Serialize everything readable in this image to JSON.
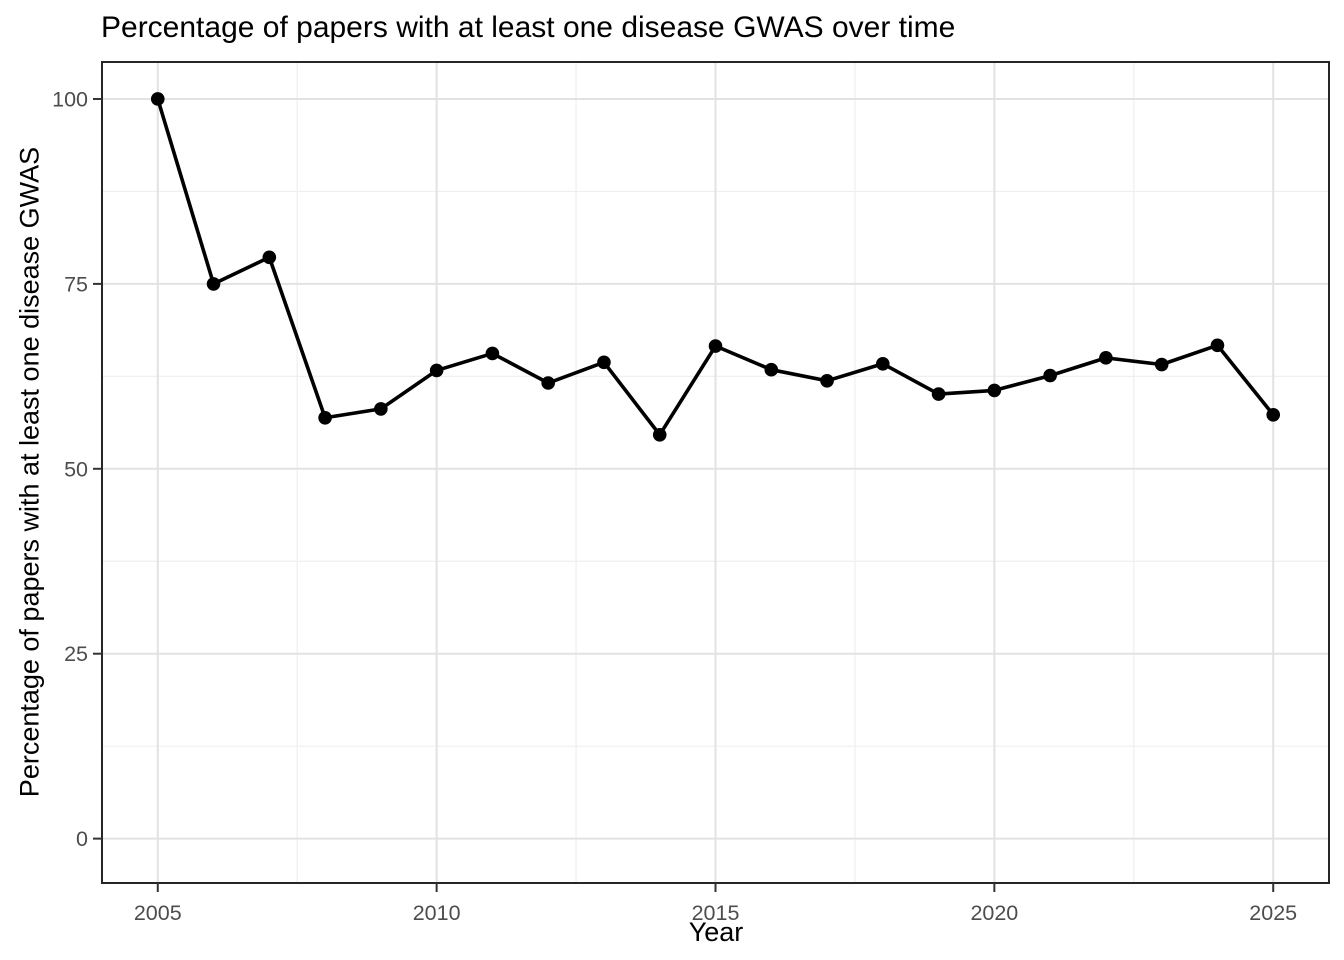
{
  "chart_data": {
    "type": "line",
    "title": "Percentage of papers with at least one disease GWAS over time",
    "xlabel": "Year",
    "ylabel": "Percentage of papers with at least one disease GWAS",
    "x": [
      2005,
      2006,
      2007,
      2008,
      2009,
      2010,
      2011,
      2012,
      2013,
      2014,
      2015,
      2016,
      2017,
      2018,
      2019,
      2020,
      2021,
      2022,
      2023,
      2024,
      2025
    ],
    "values": [
      100,
      75,
      78.6,
      56.9,
      58.1,
      63.3,
      65.6,
      61.6,
      64.4,
      54.6,
      66.6,
      63.4,
      61.9,
      64.2,
      60.1,
      60.6,
      62.6,
      65.0,
      64.1,
      66.7,
      57.3
    ],
    "series_name": "Percentage of papers with at least one disease GWAS",
    "xlim": [
      2004,
      2026
    ],
    "ylim": [
      -6,
      105
    ],
    "x_ticks": [
      2005,
      2010,
      2015,
      2020,
      2025
    ],
    "y_ticks": [
      0,
      25,
      50,
      75,
      100
    ],
    "x_minor_breaks": [
      2007.5,
      2012.5,
      2017.5,
      2022.5
    ],
    "y_minor_breaks": [
      12.5,
      37.5,
      62.5,
      87.5
    ],
    "grid": "major+minor",
    "legend_position": "none",
    "marker": "filled-circle",
    "colors": {
      "line": "#000000",
      "point": "#000000",
      "panel_background": "#ffffff",
      "panel_border": "#262626",
      "grid_major": "#e2e2e2",
      "grid_minor": "#efefef",
      "tick_mark": "#333333",
      "tick_label": "#4d4d4d",
      "axis_title": "#000000",
      "title": "#000000"
    }
  }
}
